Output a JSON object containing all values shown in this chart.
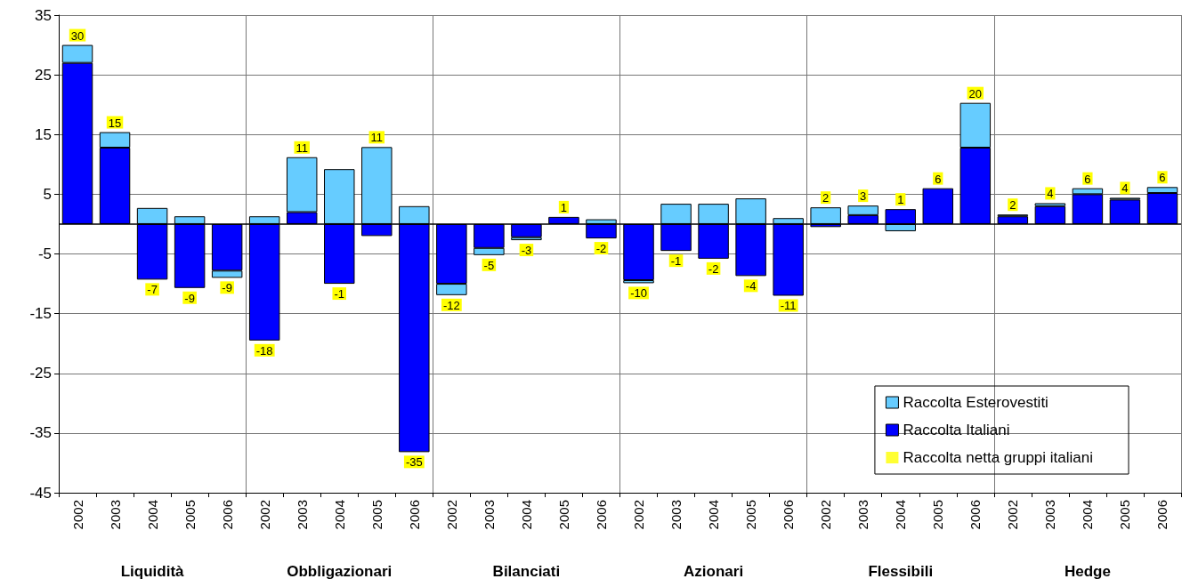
{
  "chart_data": {
    "type": "bar",
    "stacked": true,
    "categories": [
      "2002",
      "2003",
      "2004",
      "2005",
      "2006",
      "2002",
      "2003",
      "2004",
      "2005",
      "2006",
      "2002",
      "2003",
      "2004",
      "2005",
      "2006",
      "2002",
      "2003",
      "2004",
      "2005",
      "2006",
      "2002",
      "2003",
      "2004",
      "2005",
      "2006",
      "2002",
      "2003",
      "2004",
      "2005",
      "2006"
    ],
    "annotations": [
      "Liquidità",
      "Obbligazionari",
      "Bilanciati",
      "Azionari",
      "Flessibili",
      "Hedge"
    ],
    "series": [
      {
        "name": "Raccolta Italiani",
        "color": "#0000ff",
        "values": [
          27,
          12.8,
          -9.3,
          -10.7,
          -7.8,
          -19.5,
          2,
          -10,
          -2,
          -38.2,
          -10,
          -4,
          -2.2,
          1.2,
          -2.4,
          -9.4,
          -4.5,
          -5.8,
          -8.7,
          -12,
          -0.5,
          1.5,
          2.5,
          6,
          12.8,
          1.3,
          3,
          5,
          4.1,
          5.2
        ]
      },
      {
        "name": "Raccolta Esterovestiti",
        "color": "#66ccff",
        "values": [
          3,
          2.6,
          2.7,
          1.3,
          -1.2,
          1.3,
          9.2,
          9.2,
          12.9,
          3,
          -1.9,
          -1.2,
          -0.5,
          0,
          0.8,
          -0.5,
          3.4,
          3.4,
          4.3,
          1,
          2.8,
          1.6,
          -1.2,
          0,
          7.5,
          0.3,
          0.5,
          1,
          0.3,
          1
        ]
      },
      {
        "name": "Raccolta netta gruppi italiani",
        "type": "scatter",
        "color": "#ffff00",
        "values": [
          null,
          null,
          null,
          null,
          null,
          null,
          null,
          null,
          null,
          null,
          null,
          null,
          null,
          null,
          null,
          null,
          null,
          null,
          null,
          null,
          null,
          null,
          null,
          null,
          null,
          null,
          null,
          null,
          null,
          null
        ]
      }
    ],
    "totals": [
      "30",
      "15",
      "-7",
      "-9",
      "-9",
      "-18",
      "11",
      "-1",
      "11",
      "-35",
      "-12",
      "-5",
      "-3",
      "1",
      "-2",
      "-10",
      "-1",
      "-2",
      "-4",
      "-11",
      "2",
      "3",
      "1",
      "6",
      "20",
      "2",
      "4",
      "6",
      "4",
      "6"
    ],
    "ylim": [
      -45,
      35
    ],
    "yticks": [
      -45,
      -35,
      -25,
      -15,
      -5,
      5,
      15,
      25,
      35
    ],
    "ref_lines": [
      {
        "axis": "y",
        "value": 0,
        "color": "#000000"
      }
    ],
    "grid": true,
    "legend": "bottom right"
  }
}
